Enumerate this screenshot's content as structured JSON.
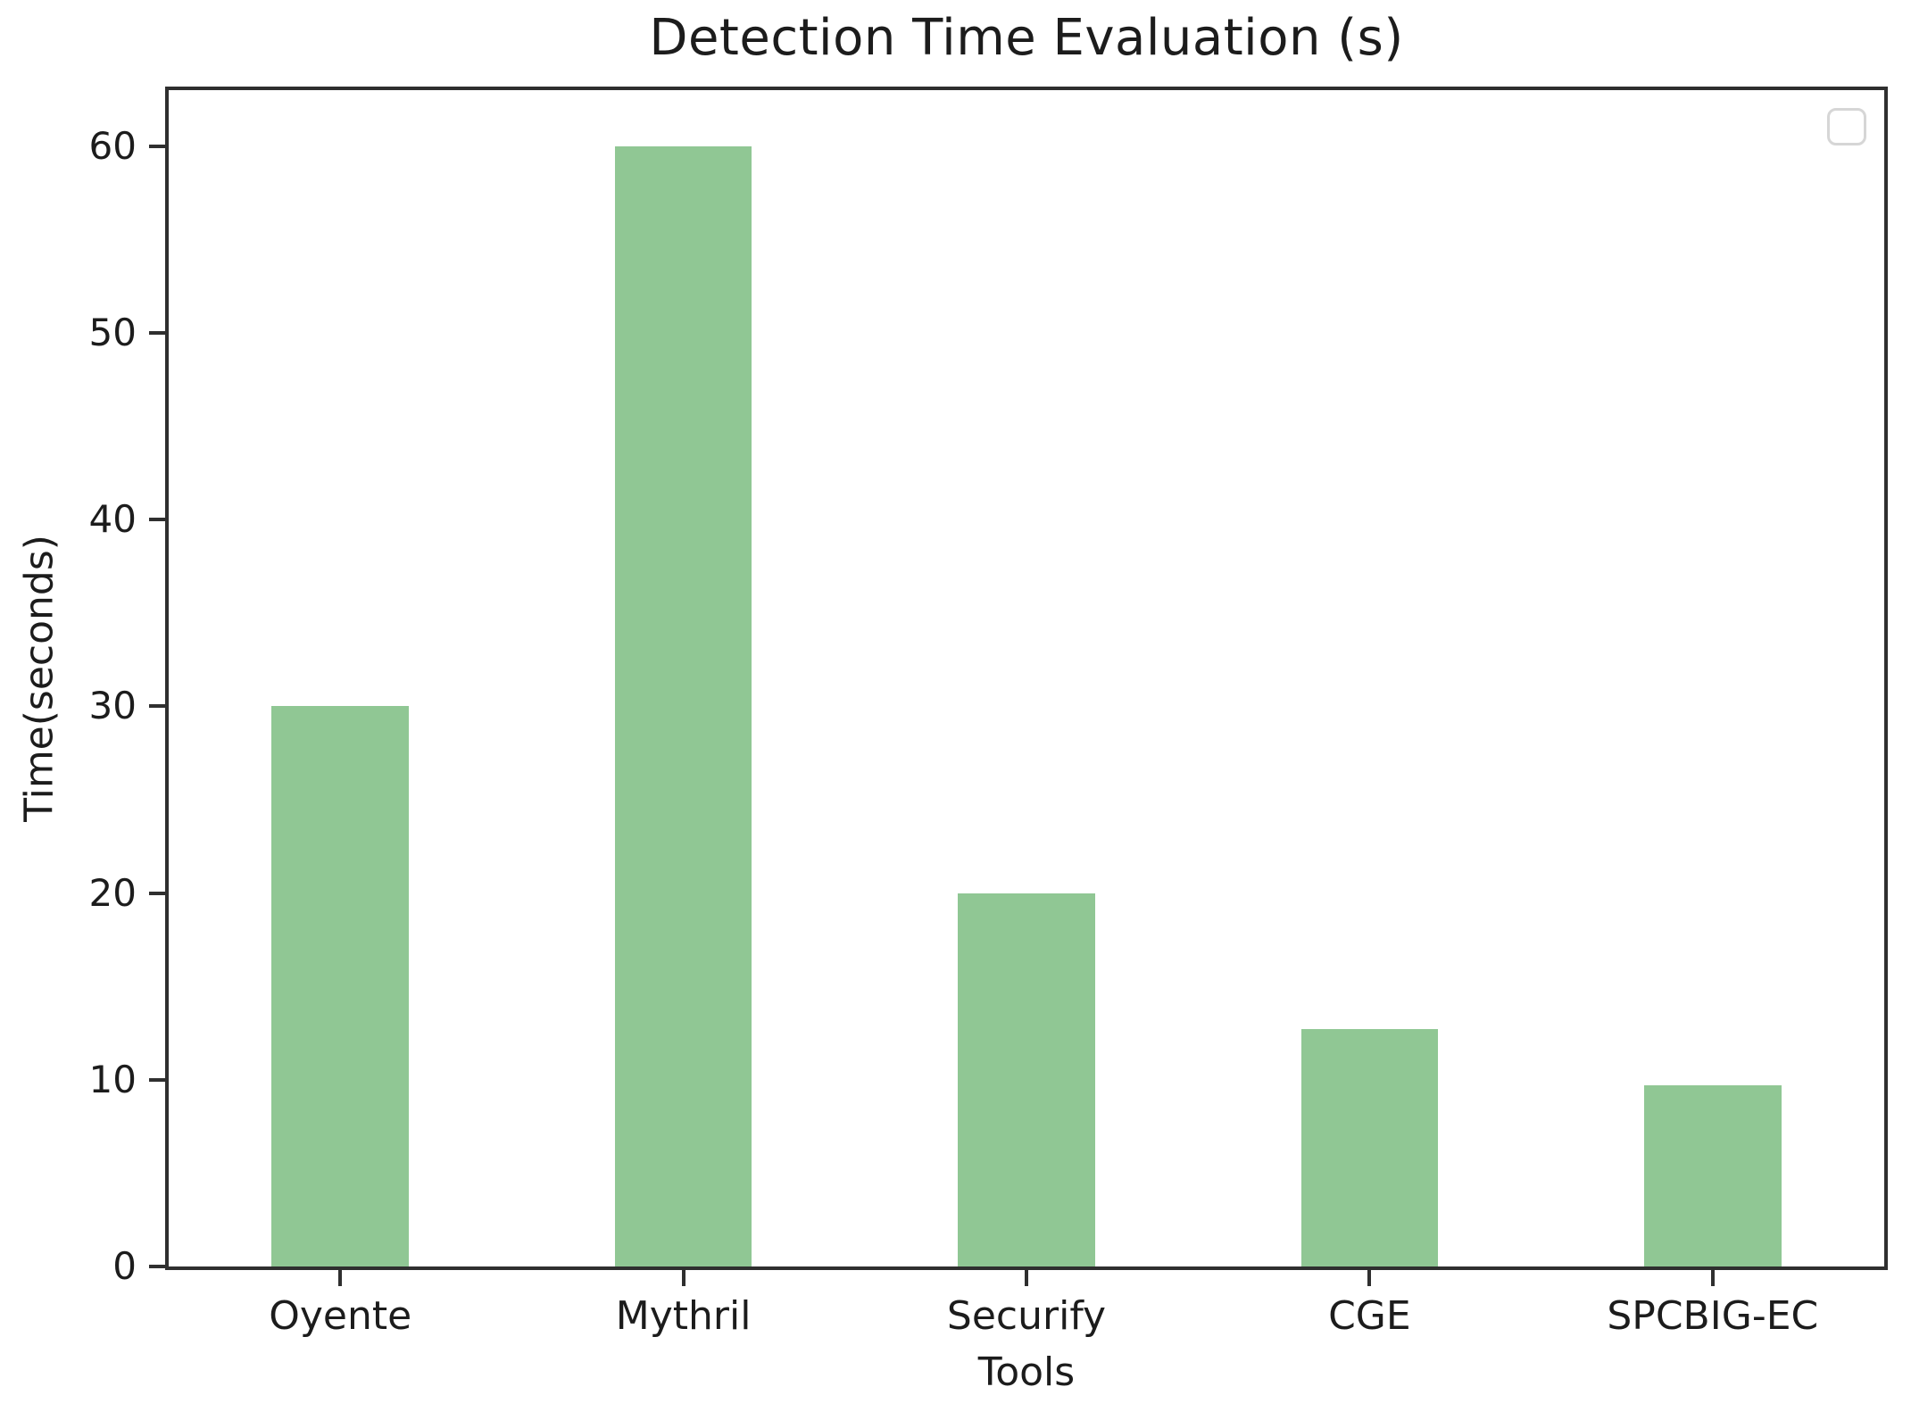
{
  "chart_data": {
    "type": "bar",
    "title": "Detection Time Evaluation (s)",
    "xlabel": "Tools",
    "ylabel": "Time(seconds)",
    "categories": [
      "Oyente",
      "Mythril",
      "Securify",
      "CGE",
      "SPCBIG-EC"
    ],
    "values": [
      30,
      60,
      20,
      12.7,
      9.7
    ],
    "yticks": [
      0,
      10,
      20,
      30,
      40,
      50,
      60
    ],
    "ylim": [
      0,
      63
    ],
    "bar_color": "#90c794",
    "bar_width_frac": 0.4,
    "grid": false,
    "legend": {
      "visible": true,
      "entries": [],
      "position": "upper-right",
      "border_color": "#d6d6d6"
    },
    "axis_color": "#2f2f2f",
    "text_color": "#1c1c1c",
    "background": "#ffffff"
  }
}
